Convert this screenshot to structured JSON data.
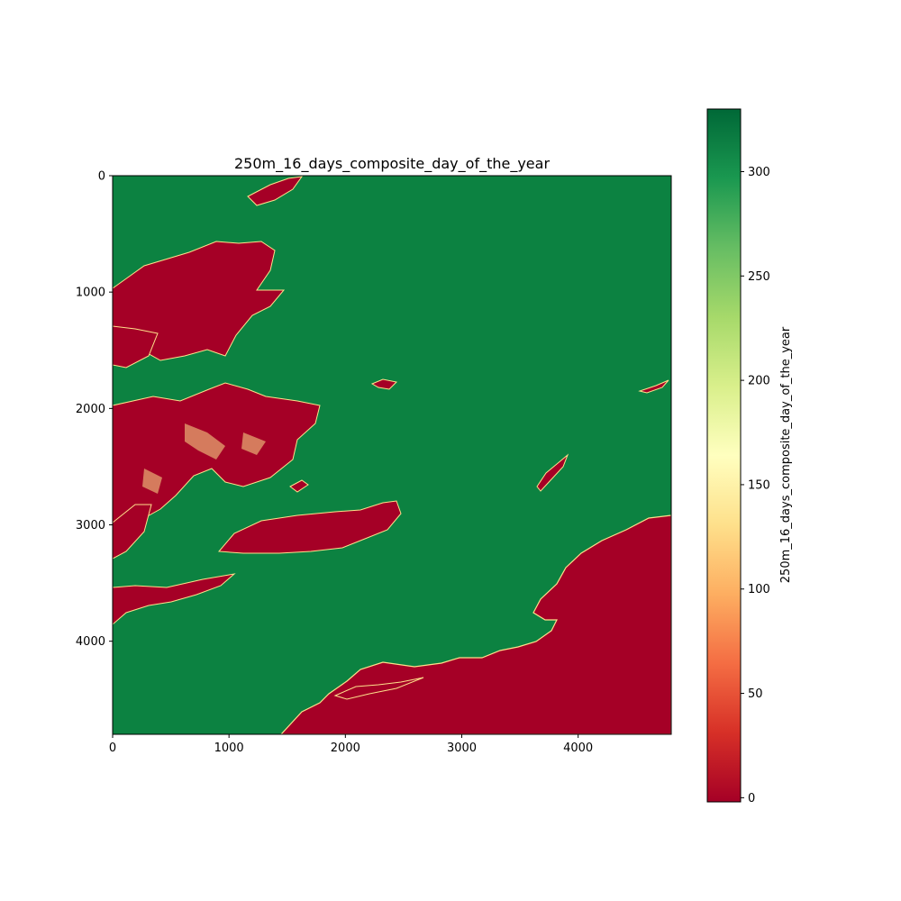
{
  "chart_data": {
    "type": "heatmap",
    "title": "250m_16_days_composite_day_of_the_year",
    "x_range": [
      0,
      4800
    ],
    "y_range": [
      0,
      4800
    ],
    "y_inverted": true,
    "x_ticks": [
      "0",
      "1000",
      "2000",
      "3000",
      "4000"
    ],
    "y_ticks": [
      "0",
      "1000",
      "2000",
      "3000",
      "4000"
    ],
    "x_tick_values": [
      0,
      1000,
      2000,
      3000,
      4000
    ],
    "y_tick_values": [
      0,
      1000,
      2000,
      3000,
      4000
    ],
    "colormap": "RdYlGn",
    "colorbar": {
      "label": "250m_16_days_composite_day_of_the_year",
      "range": [
        -2,
        330
      ],
      "ticks": [
        "0",
        "50",
        "100",
        "150",
        "200",
        "250",
        "300"
      ],
      "tick_values": [
        0,
        50,
        100,
        150,
        200,
        250,
        300
      ]
    },
    "dominant_value": 305,
    "regions": [
      {
        "label": "upper-left islands",
        "value": 0
      },
      {
        "label": "central-left islands",
        "value": 0
      },
      {
        "label": "left island at y~3200",
        "value": 0
      },
      {
        "label": "lower-left island at y~3600",
        "value": 0
      },
      {
        "label": "lower-right ocean mass",
        "value": 0
      }
    ]
  },
  "colors": {
    "high": "#0b7f3f",
    "low": "#a50026",
    "mid": "#fefebd",
    "ramp": [
      "#a50026",
      "#d73027",
      "#f46d43",
      "#fdae61",
      "#fee08b",
      "#ffffbf",
      "#d9ef8b",
      "#a6d96a",
      "#66bd63",
      "#1a9850",
      "#006837"
    ]
  }
}
